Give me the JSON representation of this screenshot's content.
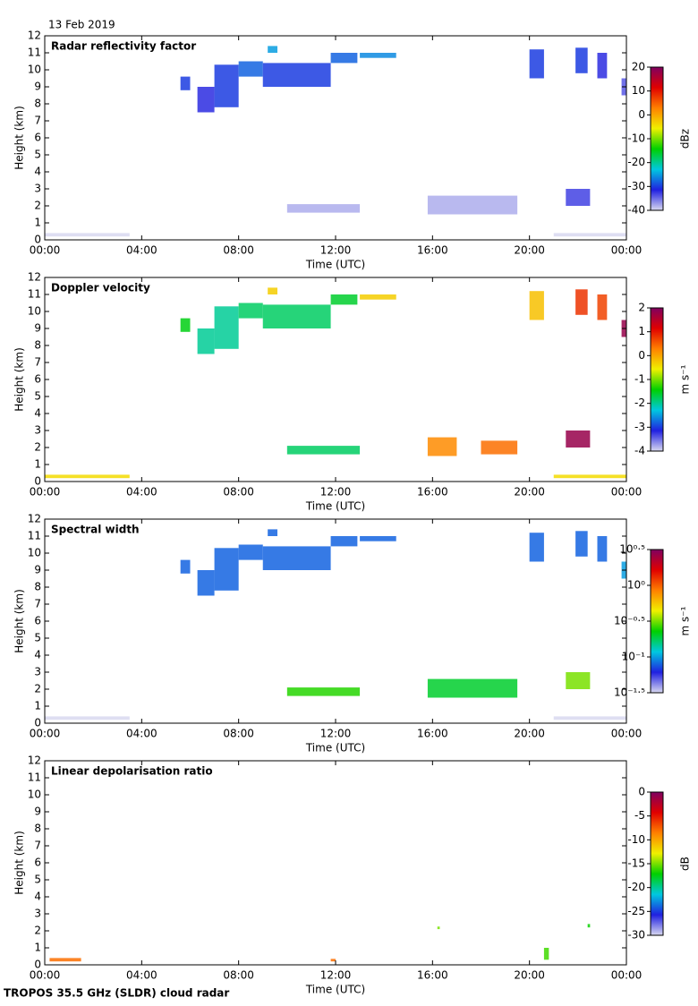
{
  "date": "13 Feb 2019",
  "footer": "TROPOS 35.5 GHz (SLDR) cloud radar",
  "chart_data": [
    {
      "type": "heatmap",
      "title": "Radar reflectivity factor",
      "xlabel": "Time (UTC)",
      "ylabel": "Height (km)",
      "xlim": [
        0,
        24
      ],
      "xticks": [
        {
          "value": 0,
          "label": "00:00"
        },
        {
          "value": 4,
          "label": "04:00"
        },
        {
          "value": 8,
          "label": "08:00"
        },
        {
          "value": 12,
          "label": "12:00"
        },
        {
          "value": 16,
          "label": "16:00"
        },
        {
          "value": 20,
          "label": "20:00"
        },
        {
          "value": 24,
          "label": "00:00"
        }
      ],
      "ylim": [
        0,
        12
      ],
      "yticks": [
        0,
        1,
        2,
        3,
        4,
        5,
        6,
        7,
        8,
        9,
        10,
        11,
        12
      ],
      "colorbar_label": "dBz",
      "clim": [
        -40,
        20
      ],
      "cticks": [
        -40,
        -30,
        -20,
        -10,
        0,
        10,
        20
      ],
      "colormap": [
        "#d8d8f0",
        "#2020e0",
        "#00c8e0",
        "#00d000",
        "#f0f000",
        "#ff8000",
        "#e00000",
        "#800060"
      ],
      "cells": [
        {
          "x0": 5.6,
          "x1": 6.0,
          "y0": 8.8,
          "y1": 9.6,
          "value": -30
        },
        {
          "x0": 6.3,
          "x1": 7.0,
          "y0": 7.5,
          "y1": 9.0,
          "value": -32
        },
        {
          "x0": 7.0,
          "x1": 8.0,
          "y0": 7.8,
          "y1": 10.3,
          "value": -30
        },
        {
          "x0": 8.0,
          "x1": 9.0,
          "y0": 9.6,
          "y1": 10.5,
          "value": -28
        },
        {
          "x0": 9.2,
          "x1": 9.6,
          "y0": 11.0,
          "y1": 11.4,
          "value": -25
        },
        {
          "x0": 9.0,
          "x1": 11.8,
          "y0": 9.0,
          "y1": 10.4,
          "value": -30
        },
        {
          "x0": 11.8,
          "x1": 12.9,
          "y0": 10.4,
          "y1": 11.0,
          "value": -28
        },
        {
          "x0": 13.0,
          "x1": 14.5,
          "y0": 10.7,
          "y1": 11.0,
          "value": -26
        },
        {
          "x0": 10.0,
          "x1": 13.0,
          "y0": 1.6,
          "y1": 2.1,
          "value": -38
        },
        {
          "x0": 15.8,
          "x1": 19.5,
          "y0": 1.5,
          "y1": 2.6,
          "value": -38
        },
        {
          "x0": 20.0,
          "x1": 20.6,
          "y0": 9.5,
          "y1": 11.2,
          "value": -30
        },
        {
          "x0": 21.9,
          "x1": 22.4,
          "y0": 9.8,
          "y1": 11.3,
          "value": -30
        },
        {
          "x0": 22.8,
          "x1": 23.2,
          "y0": 9.5,
          "y1": 11.0,
          "value": -32
        },
        {
          "x0": 23.8,
          "x1": 24.0,
          "y0": 8.5,
          "y1": 9.5,
          "value": -34
        },
        {
          "x0": 21.5,
          "x1": 22.5,
          "y0": 2.0,
          "y1": 3.0,
          "value": -33
        },
        {
          "x0": 0.0,
          "x1": 3.5,
          "y0": 0.2,
          "y1": 0.4,
          "value": -40
        },
        {
          "x0": 21.0,
          "x1": 24.0,
          "y0": 0.2,
          "y1": 0.4,
          "value": -40
        }
      ]
    },
    {
      "type": "heatmap",
      "title": "Doppler velocity",
      "xlabel": "Time (UTC)",
      "ylabel": "Height (km)",
      "xlim": [
        0,
        24
      ],
      "xticks": [
        {
          "value": 0,
          "label": "00:00"
        },
        {
          "value": 4,
          "label": "04:00"
        },
        {
          "value": 8,
          "label": "08:00"
        },
        {
          "value": 12,
          "label": "12:00"
        },
        {
          "value": 16,
          "label": "16:00"
        },
        {
          "value": 20,
          "label": "20:00"
        },
        {
          "value": 24,
          "label": "00:00"
        }
      ],
      "ylim": [
        0,
        12
      ],
      "yticks": [
        0,
        1,
        2,
        3,
        4,
        5,
        6,
        7,
        8,
        9,
        10,
        11,
        12
      ],
      "colorbar_label": "m s⁻¹",
      "clim": [
        -4,
        2
      ],
      "cticks": [
        -4,
        -3,
        -2,
        -1,
        0,
        1,
        2
      ],
      "colormap": [
        "#d8d8f0",
        "#2020e0",
        "#00c8e0",
        "#00d000",
        "#f0f000",
        "#ff8000",
        "#e00000",
        "#800060"
      ],
      "cells": [
        {
          "x0": 5.6,
          "x1": 6.0,
          "y0": 8.8,
          "y1": 9.6,
          "value": -1.5
        },
        {
          "x0": 6.3,
          "x1": 7.0,
          "y0": 7.5,
          "y1": 9.0,
          "value": -2.0
        },
        {
          "x0": 7.0,
          "x1": 8.0,
          "y0": 7.8,
          "y1": 10.3,
          "value": -2.0
        },
        {
          "x0": 8.0,
          "x1": 9.0,
          "y0": 9.6,
          "y1": 10.5,
          "value": -1.8
        },
        {
          "x0": 9.2,
          "x1": 9.6,
          "y0": 11.0,
          "y1": 11.4,
          "value": -0.3
        },
        {
          "x0": 9.0,
          "x1": 11.8,
          "y0": 9.0,
          "y1": 10.4,
          "value": -1.8
        },
        {
          "x0": 11.8,
          "x1": 12.9,
          "y0": 10.4,
          "y1": 11.0,
          "value": -1.6
        },
        {
          "x0": 13.0,
          "x1": 14.5,
          "y0": 10.7,
          "y1": 11.0,
          "value": -0.3
        },
        {
          "x0": 10.0,
          "x1": 13.0,
          "y0": 1.6,
          "y1": 2.1,
          "value": -1.8
        },
        {
          "x0": 15.8,
          "x1": 17.0,
          "y0": 1.5,
          "y1": 2.6,
          "value": 0.2
        },
        {
          "x0": 18.0,
          "x1": 19.5,
          "y0": 1.6,
          "y1": 2.4,
          "value": 0.4
        },
        {
          "x0": 20.0,
          "x1": 20.6,
          "y0": 9.5,
          "y1": 11.2,
          "value": -0.2
        },
        {
          "x0": 21.9,
          "x1": 22.4,
          "y0": 9.8,
          "y1": 11.3,
          "value": 0.8
        },
        {
          "x0": 22.8,
          "x1": 23.2,
          "y0": 9.5,
          "y1": 11.0,
          "value": 0.7
        },
        {
          "x0": 23.8,
          "x1": 24.0,
          "y0": 8.5,
          "y1": 9.5,
          "value": 1.8
        },
        {
          "x0": 21.5,
          "x1": 22.5,
          "y0": 2.0,
          "y1": 3.0,
          "value": 1.8
        },
        {
          "x0": 0.0,
          "x1": 3.5,
          "y0": 0.2,
          "y1": 0.4,
          "value": -0.4
        },
        {
          "x0": 21.0,
          "x1": 24.0,
          "y0": 0.2,
          "y1": 0.4,
          "value": -0.4
        }
      ]
    },
    {
      "type": "heatmap",
      "title": "Spectral width",
      "xlabel": "Time (UTC)",
      "ylabel": "Height (km)",
      "xlim": [
        0,
        24
      ],
      "xticks": [
        {
          "value": 0,
          "label": "00:00"
        },
        {
          "value": 4,
          "label": "04:00"
        },
        {
          "value": 8,
          "label": "08:00"
        },
        {
          "value": 12,
          "label": "12:00"
        },
        {
          "value": 16,
          "label": "16:00"
        },
        {
          "value": 20,
          "label": "20:00"
        },
        {
          "value": 24,
          "label": "00:00"
        }
      ],
      "ylim": [
        0,
        12
      ],
      "yticks": [
        0,
        1,
        2,
        3,
        4,
        5,
        6,
        7,
        8,
        9,
        10,
        11,
        12
      ],
      "colorbar_label": "m s⁻¹",
      "clim": [
        -1.5,
        0.5
      ],
      "cticks": [
        {
          "value": -1.5,
          "label": "10⁻¹·⁵"
        },
        {
          "value": -1,
          "label": "10⁻¹"
        },
        {
          "value": -0.5,
          "label": "10⁻⁰·⁵"
        },
        {
          "value": 0,
          "label": "10⁰"
        },
        {
          "value": 0.5,
          "label": "10⁰·⁵"
        }
      ],
      "colormap": [
        "#d8d8f0",
        "#2020e0",
        "#00c8e0",
        "#00d000",
        "#f0f000",
        "#ff8000",
        "#e00000",
        "#800060"
      ],
      "cells": [
        {
          "x0": 5.6,
          "x1": 6.0,
          "y0": 8.8,
          "y1": 9.6,
          "value": -1.1
        },
        {
          "x0": 6.3,
          "x1": 7.0,
          "y0": 7.5,
          "y1": 9.0,
          "value": -1.1
        },
        {
          "x0": 7.0,
          "x1": 8.0,
          "y0": 7.8,
          "y1": 10.3,
          "value": -1.1
        },
        {
          "x0": 8.0,
          "x1": 9.0,
          "y0": 9.6,
          "y1": 10.5,
          "value": -1.1
        },
        {
          "x0": 9.2,
          "x1": 9.6,
          "y0": 11.0,
          "y1": 11.4,
          "value": -1.1
        },
        {
          "x0": 9.0,
          "x1": 11.8,
          "y0": 9.0,
          "y1": 10.4,
          "value": -1.1
        },
        {
          "x0": 11.8,
          "x1": 12.9,
          "y0": 10.4,
          "y1": 11.0,
          "value": -1.1
        },
        {
          "x0": 13.0,
          "x1": 14.5,
          "y0": 10.7,
          "y1": 11.0,
          "value": -1.1
        },
        {
          "x0": 10.0,
          "x1": 13.0,
          "y0": 1.6,
          "y1": 2.1,
          "value": -0.6
        },
        {
          "x0": 15.8,
          "x1": 19.5,
          "y0": 1.5,
          "y1": 2.6,
          "value": -0.7
        },
        {
          "x0": 20.0,
          "x1": 20.6,
          "y0": 9.5,
          "y1": 11.2,
          "value": -1.1
        },
        {
          "x0": 21.9,
          "x1": 22.4,
          "y0": 9.8,
          "y1": 11.3,
          "value": -1.1
        },
        {
          "x0": 22.8,
          "x1": 23.2,
          "y0": 9.5,
          "y1": 11.0,
          "value": -1.1
        },
        {
          "x0": 23.8,
          "x1": 24.0,
          "y0": 8.5,
          "y1": 9.5,
          "value": -1.0
        },
        {
          "x0": 21.5,
          "x1": 22.5,
          "y0": 2.0,
          "y1": 3.0,
          "value": -0.5
        },
        {
          "x0": 0.0,
          "x1": 3.5,
          "y0": 0.2,
          "y1": 0.4,
          "value": -1.5
        },
        {
          "x0": 21.0,
          "x1": 24.0,
          "y0": 0.2,
          "y1": 0.4,
          "value": -1.5
        }
      ]
    },
    {
      "type": "heatmap",
      "title": "Linear depolarisation ratio",
      "xlabel": "Time (UTC)",
      "ylabel": "Height (km)",
      "xlim": [
        0,
        24
      ],
      "xticks": [
        {
          "value": 0,
          "label": "00:00"
        },
        {
          "value": 4,
          "label": "04:00"
        },
        {
          "value": 8,
          "label": "08:00"
        },
        {
          "value": 12,
          "label": "12:00"
        },
        {
          "value": 16,
          "label": "16:00"
        },
        {
          "value": 20,
          "label": "20:00"
        },
        {
          "value": 24,
          "label": "00:00"
        }
      ],
      "ylim": [
        0,
        12
      ],
      "yticks": [
        0,
        1,
        2,
        3,
        4,
        5,
        6,
        7,
        8,
        9,
        10,
        11,
        12
      ],
      "colorbar_label": "dB",
      "clim": [
        -30,
        0
      ],
      "cticks": [
        -30,
        -25,
        -20,
        -15,
        -10,
        -5,
        0
      ],
      "colormap": [
        "#d8d8f0",
        "#2020e0",
        "#00c8e0",
        "#00d000",
        "#f0f000",
        "#ff8000",
        "#e00000",
        "#800060"
      ],
      "cells": [
        {
          "x0": 0.2,
          "x1": 1.5,
          "y0": 0.2,
          "y1": 0.4,
          "value": -8
        },
        {
          "x0": 16.2,
          "x1": 16.3,
          "y0": 2.1,
          "y1": 2.25,
          "value": -15
        },
        {
          "x0": 20.6,
          "x1": 20.8,
          "y0": 0.3,
          "y1": 1.0,
          "value": -16
        },
        {
          "x0": 22.4,
          "x1": 22.5,
          "y0": 2.2,
          "y1": 2.4,
          "value": -17
        },
        {
          "x0": 11.8,
          "x1": 12.0,
          "y0": 0.2,
          "y1": 0.35,
          "value": -8
        }
      ]
    }
  ]
}
